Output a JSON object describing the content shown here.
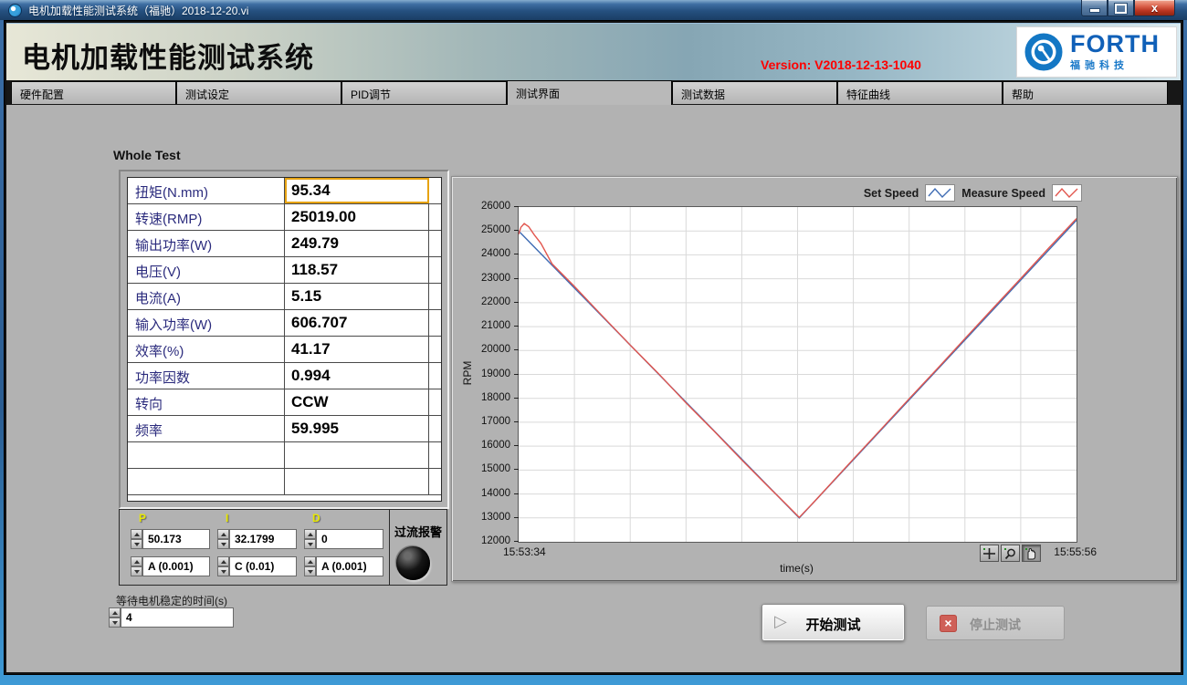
{
  "window": {
    "title": "电机加载性能测试系统（福驰）2018-12-20.vi"
  },
  "header": {
    "app_title": "电机加载性能测试系统",
    "version_label": "Version:",
    "version_value": " V2018-12-13-1040",
    "logo": {
      "brand": "FORTH",
      "sub_brand": "福驰科技"
    }
  },
  "tabs": [
    {
      "id": "hardware-config",
      "label": "硬件配置",
      "active": false
    },
    {
      "id": "test-settings",
      "label": "测试设定",
      "active": false
    },
    {
      "id": "pid-tuning",
      "label": "PID调节",
      "active": false
    },
    {
      "id": "test-interface",
      "label": "测试界面",
      "active": true
    },
    {
      "id": "test-data",
      "label": "测试数据",
      "active": false
    },
    {
      "id": "characteristic-curve",
      "label": "特征曲线",
      "active": false
    },
    {
      "id": "help",
      "label": "帮助",
      "active": false
    }
  ],
  "panel": {
    "section_title": "Whole Test",
    "measurements": [
      {
        "label": "扭矩(N.mm)",
        "value": "95.34",
        "focused": true
      },
      {
        "label": "转速(RMP)",
        "value": "25019.00"
      },
      {
        "label": "输出功率(W)",
        "value": "249.79"
      },
      {
        "label": "电压(V)",
        "value": "118.57"
      },
      {
        "label": "电流(A)",
        "value": "5.15"
      },
      {
        "label": "输入功率(W)",
        "value": "606.707"
      },
      {
        "label": "效率(%)",
        "value": "41.17"
      },
      {
        "label": "功率因数",
        "value": "0.994"
      },
      {
        "label": "转向",
        "value": "CCW"
      },
      {
        "label": "频率",
        "value": "59.995"
      }
    ],
    "empty_rows": 2,
    "pid": {
      "groups": [
        {
          "id": "p",
          "label": "P",
          "value": "50.173",
          "gain": "A (0.001)"
        },
        {
          "id": "i",
          "label": "I",
          "value": "32.1799",
          "gain": "C (0.01)"
        },
        {
          "id": "d",
          "label": "D",
          "value": "0",
          "gain": "A (0.001)"
        }
      ],
      "alarm_label": "过流报警"
    },
    "wait_time": {
      "label": "等待电机稳定的时间(s)",
      "value": "4"
    },
    "actions": {
      "start": "开始测试",
      "stop": "停止测试",
      "start_icon": "▷",
      "stop_icon": "×"
    }
  },
  "chart_data": {
    "type": "line",
    "title": "",
    "ylabel": "RPM",
    "xlabel": "time(s)",
    "ylim": [
      12000,
      26000
    ],
    "ytick_step": 1000,
    "x_start_label": "15:53:34",
    "x_end_label": "15:55:56",
    "x_grid_intervals": 10,
    "grid": true,
    "legend_position": "top-right",
    "legend": [
      {
        "name": "Set Speed",
        "color": "#3f6cb4"
      },
      {
        "name": "Measure Speed",
        "color": "#e2564e"
      }
    ],
    "series": [
      {
        "name": "Set Speed",
        "color": "#3f6cb4",
        "points": [
          [
            0,
            25000
          ],
          [
            0.503,
            13000
          ],
          [
            1,
            25450
          ]
        ]
      },
      {
        "name": "Measure Speed",
        "color": "#e2564e",
        "points": [
          [
            0,
            24860
          ],
          [
            0.004,
            25150
          ],
          [
            0.01,
            25310
          ],
          [
            0.018,
            25180
          ],
          [
            0.028,
            24840
          ],
          [
            0.04,
            24480
          ],
          [
            0.06,
            23620
          ],
          [
            0.1,
            22680
          ],
          [
            0.15,
            21450
          ],
          [
            0.2,
            20230
          ],
          [
            0.25,
            19050
          ],
          [
            0.3,
            17810
          ],
          [
            0.35,
            16640
          ],
          [
            0.4,
            15420
          ],
          [
            0.45,
            14250
          ],
          [
            0.48,
            13560
          ],
          [
            0.503,
            13020
          ],
          [
            0.53,
            13680
          ],
          [
            0.6,
            15460
          ],
          [
            0.65,
            16720
          ],
          [
            0.7,
            17980
          ],
          [
            0.75,
            19230
          ],
          [
            0.8,
            20500
          ],
          [
            0.85,
            21760
          ],
          [
            0.9,
            23010
          ],
          [
            0.95,
            24280
          ],
          [
            1,
            25520
          ]
        ]
      }
    ],
    "tools": [
      "crosshair",
      "zoom",
      "pan"
    ],
    "active_tool": "pan"
  }
}
